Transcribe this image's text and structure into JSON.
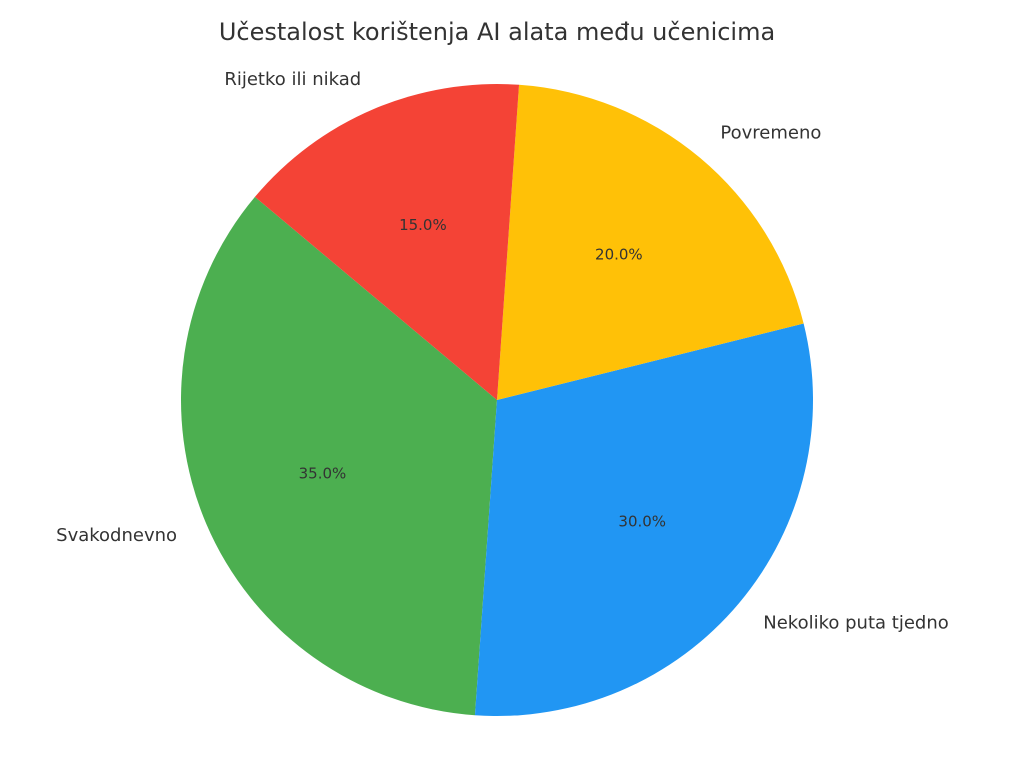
{
  "chart_data": {
    "type": "pie",
    "title": "Učestalost korištenja AI alata među učenicima",
    "categories": [
      "Svakodnevno",
      "Nekoliko puta tjedno",
      "Povremeno",
      "Rijetko ili nikad"
    ],
    "values": [
      35,
      30,
      20,
      15
    ],
    "value_labels": [
      "35.0%",
      "30.0%",
      "20.0%",
      "15.0%"
    ],
    "colors": [
      "#4caf50",
      "#2196f3",
      "#ffc107",
      "#f44336"
    ]
  }
}
